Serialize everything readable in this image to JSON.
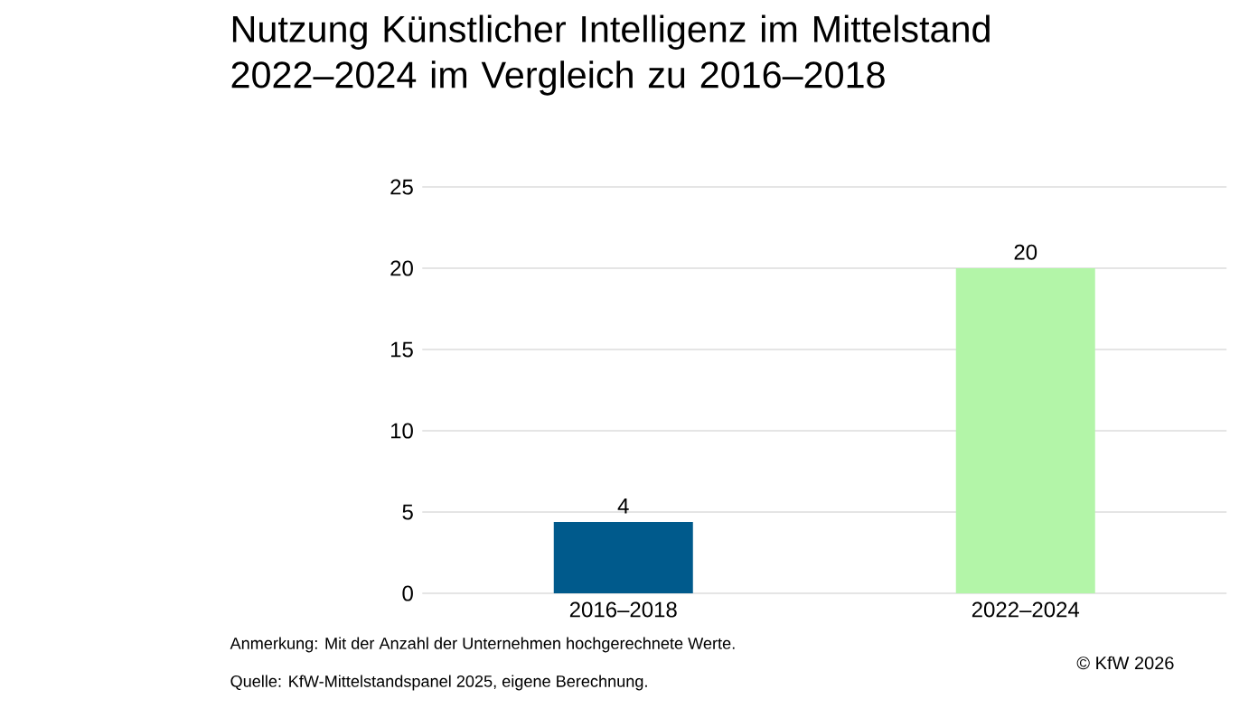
{
  "chart_data": {
    "type": "bar",
    "title": "Nutzung Künstlicher Intelligenz im Mittelstand 2022–2024 im Vergleich zu 2016–2018",
    "categories": [
      "2016–2018",
      "2022–2024"
    ],
    "values": [
      4.4,
      20
    ],
    "colors": [
      "#005a8c",
      "#b3f5a8"
    ],
    "value_labels": [
      "4",
      "20"
    ],
    "ylim": [
      0,
      25
    ],
    "yticks": [
      0,
      5,
      10,
      15,
      20,
      25
    ],
    "grid": "y",
    "annotations": [
      "Anmerkung: Mit der Anzahl der Unternehmen hochgerechnete Werte.",
      "Quelle: KfW-Mittelstandspanel 2025, eigene Berechnung.",
      "© KfW 2026"
    ]
  }
}
